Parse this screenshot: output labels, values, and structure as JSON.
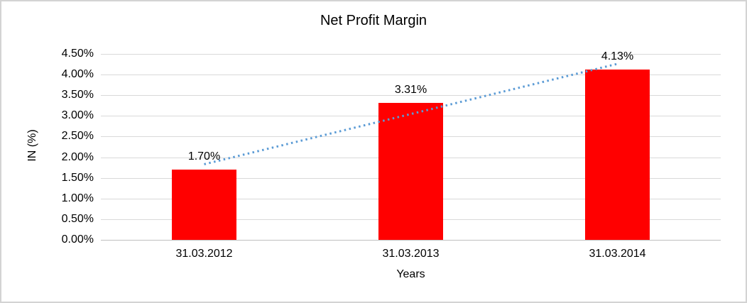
{
  "window": {
    "background": "#FFFFFF",
    "border_color": "#D3D3D3"
  },
  "chart_data": {
    "type": "bar",
    "title": "Net Profit Margin",
    "xlabel": "Years",
    "ylabel": "IN (%)",
    "categories": [
      "31.03.2012",
      "31.03.2013",
      "31.03.2014"
    ],
    "values": [
      1.7,
      3.31,
      4.13
    ],
    "data_labels": [
      "1.70%",
      "3.31%",
      "4.13%"
    ],
    "ylim": [
      0,
      4.5
    ],
    "y_tick_step": 0.5,
    "y_ticks": [
      {
        "value": 0.0,
        "label": "0.00%"
      },
      {
        "value": 0.5,
        "label": "0.50%"
      },
      {
        "value": 1.0,
        "label": "1.00%"
      },
      {
        "value": 1.5,
        "label": "1.50%"
      },
      {
        "value": 2.0,
        "label": "2.00%"
      },
      {
        "value": 2.5,
        "label": "2.50%"
      },
      {
        "value": 3.0,
        "label": "3.00%"
      },
      {
        "value": 3.5,
        "label": "3.50%"
      },
      {
        "value": 4.0,
        "label": "4.00%"
      },
      {
        "value": 4.5,
        "label": "4.50%"
      }
    ],
    "grid": true,
    "legend": "none",
    "bar_color": "#FF0000",
    "gridline_color": "#D9D9D9",
    "axis_line_color": "#BFBFBF",
    "text_color": "#000000",
    "trendline": {
      "type": "linear",
      "style": "dotted",
      "color": "#5B9BD5",
      "start_value": 1.83,
      "end_value": 4.26
    }
  }
}
